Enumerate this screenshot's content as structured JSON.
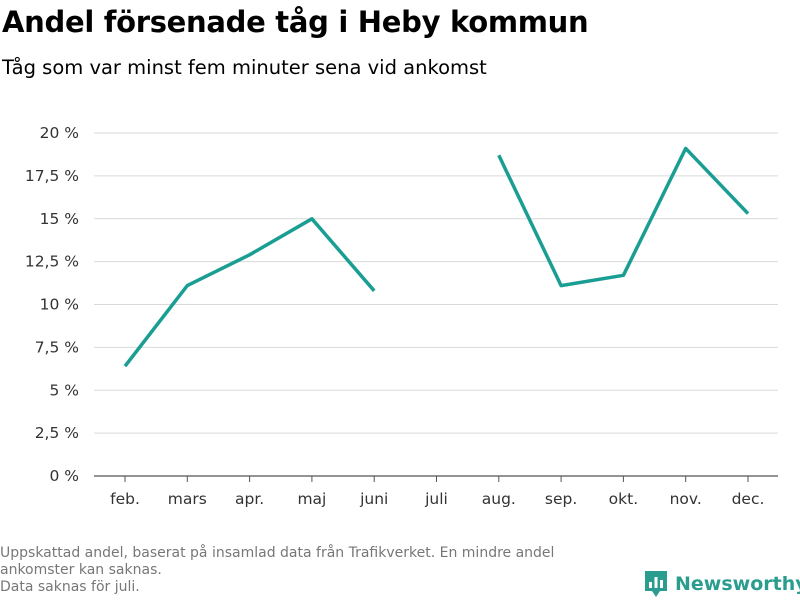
{
  "header": {
    "title": "Andel försenade tåg i Heby kommun",
    "subtitle": "Tåg som var minst fem minuter sena vid ankomst"
  },
  "chart_data": {
    "type": "line",
    "categories": [
      "feb.",
      "mars",
      "apr.",
      "maj",
      "juni",
      "juli",
      "aug.",
      "sep.",
      "okt.",
      "nov.",
      "dec."
    ],
    "series": [
      {
        "values": [
          6.4,
          11.1,
          12.9,
          15.0,
          10.8,
          null,
          18.7,
          11.1,
          11.7,
          19.1,
          15.3
        ]
      }
    ],
    "yticks": [
      0,
      2.5,
      5,
      7.5,
      10,
      12.5,
      15,
      17.5,
      20
    ],
    "ytick_labels": [
      "0 %",
      "2,5 %",
      "5 %",
      "7,5 %",
      "10 %",
      "12,5 %",
      "15 %",
      "17,5 %",
      "20 %"
    ],
    "ylim": [
      0,
      20
    ],
    "grid": true,
    "line_color": "#1a9e93"
  },
  "footnote": {
    "line1": "Uppskattad andel, baserat på insamlad data från Trafikverket. En mindre andel",
    "line2": "ankomster kan saknas.",
    "line3": "Data saknas för juli."
  },
  "brand": {
    "name": "Newsworthy",
    "icon": "newsworthy-logo-icon",
    "color": "#2a9d8f"
  }
}
